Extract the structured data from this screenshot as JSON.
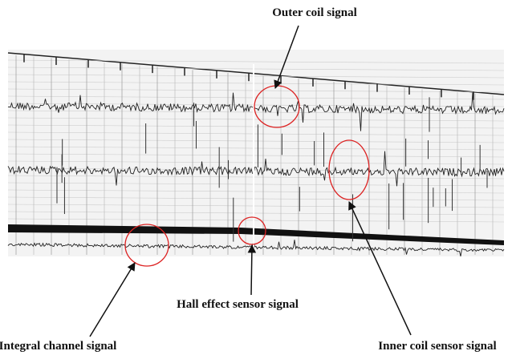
{
  "annotations": {
    "outer_coil": "Outer coil signal",
    "hall_effect": "Hall effect sensor signal",
    "integral_channel": "Integral channel signal",
    "inner_coil": "Inner coil sensor signal"
  }
}
